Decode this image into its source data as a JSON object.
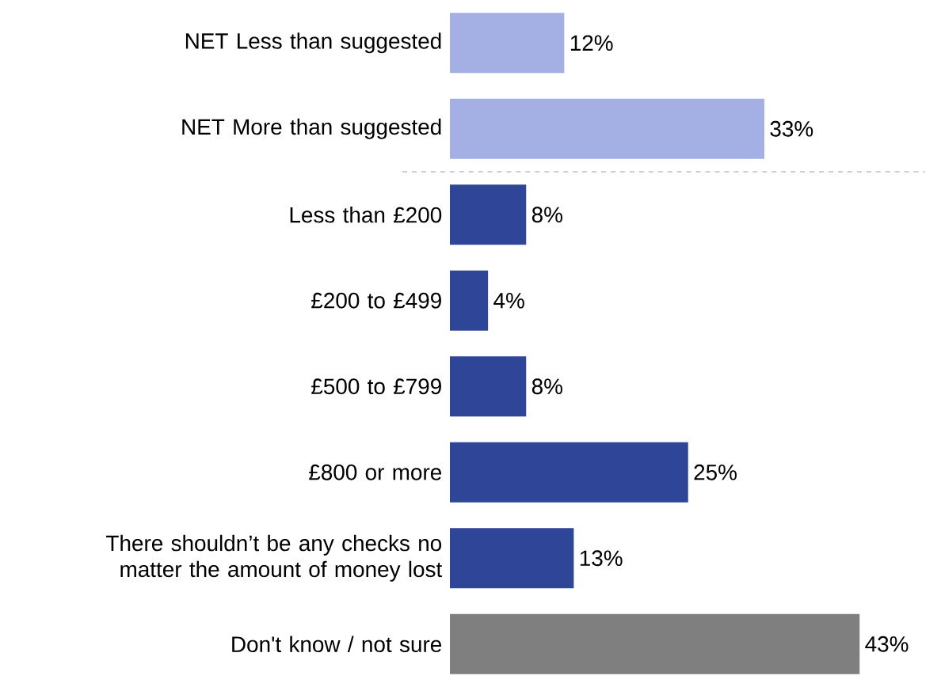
{
  "chart_data": {
    "type": "bar",
    "orientation": "horizontal",
    "categories": [
      "NET Less than suggested",
      "NET More than suggested",
      "Less than £200",
      "£200 to £499",
      "£500 to £799",
      "£800 or more",
      "There shouldn’t be any checks no matter the amount of money lost",
      "Don't know / not sure"
    ],
    "values": [
      12,
      33,
      8,
      4,
      8,
      25,
      13,
      43
    ],
    "colors": [
      "#a4b0e4",
      "#a4b0e4",
      "#2f4598",
      "#2f4598",
      "#2f4598",
      "#2f4598",
      "#2f4598",
      "#7f7f7f"
    ],
    "value_labels": [
      "12%",
      "33%",
      "8%",
      "4%",
      "8%",
      "25%",
      "13%",
      "43%"
    ],
    "tick_labels": "y"
  }
}
